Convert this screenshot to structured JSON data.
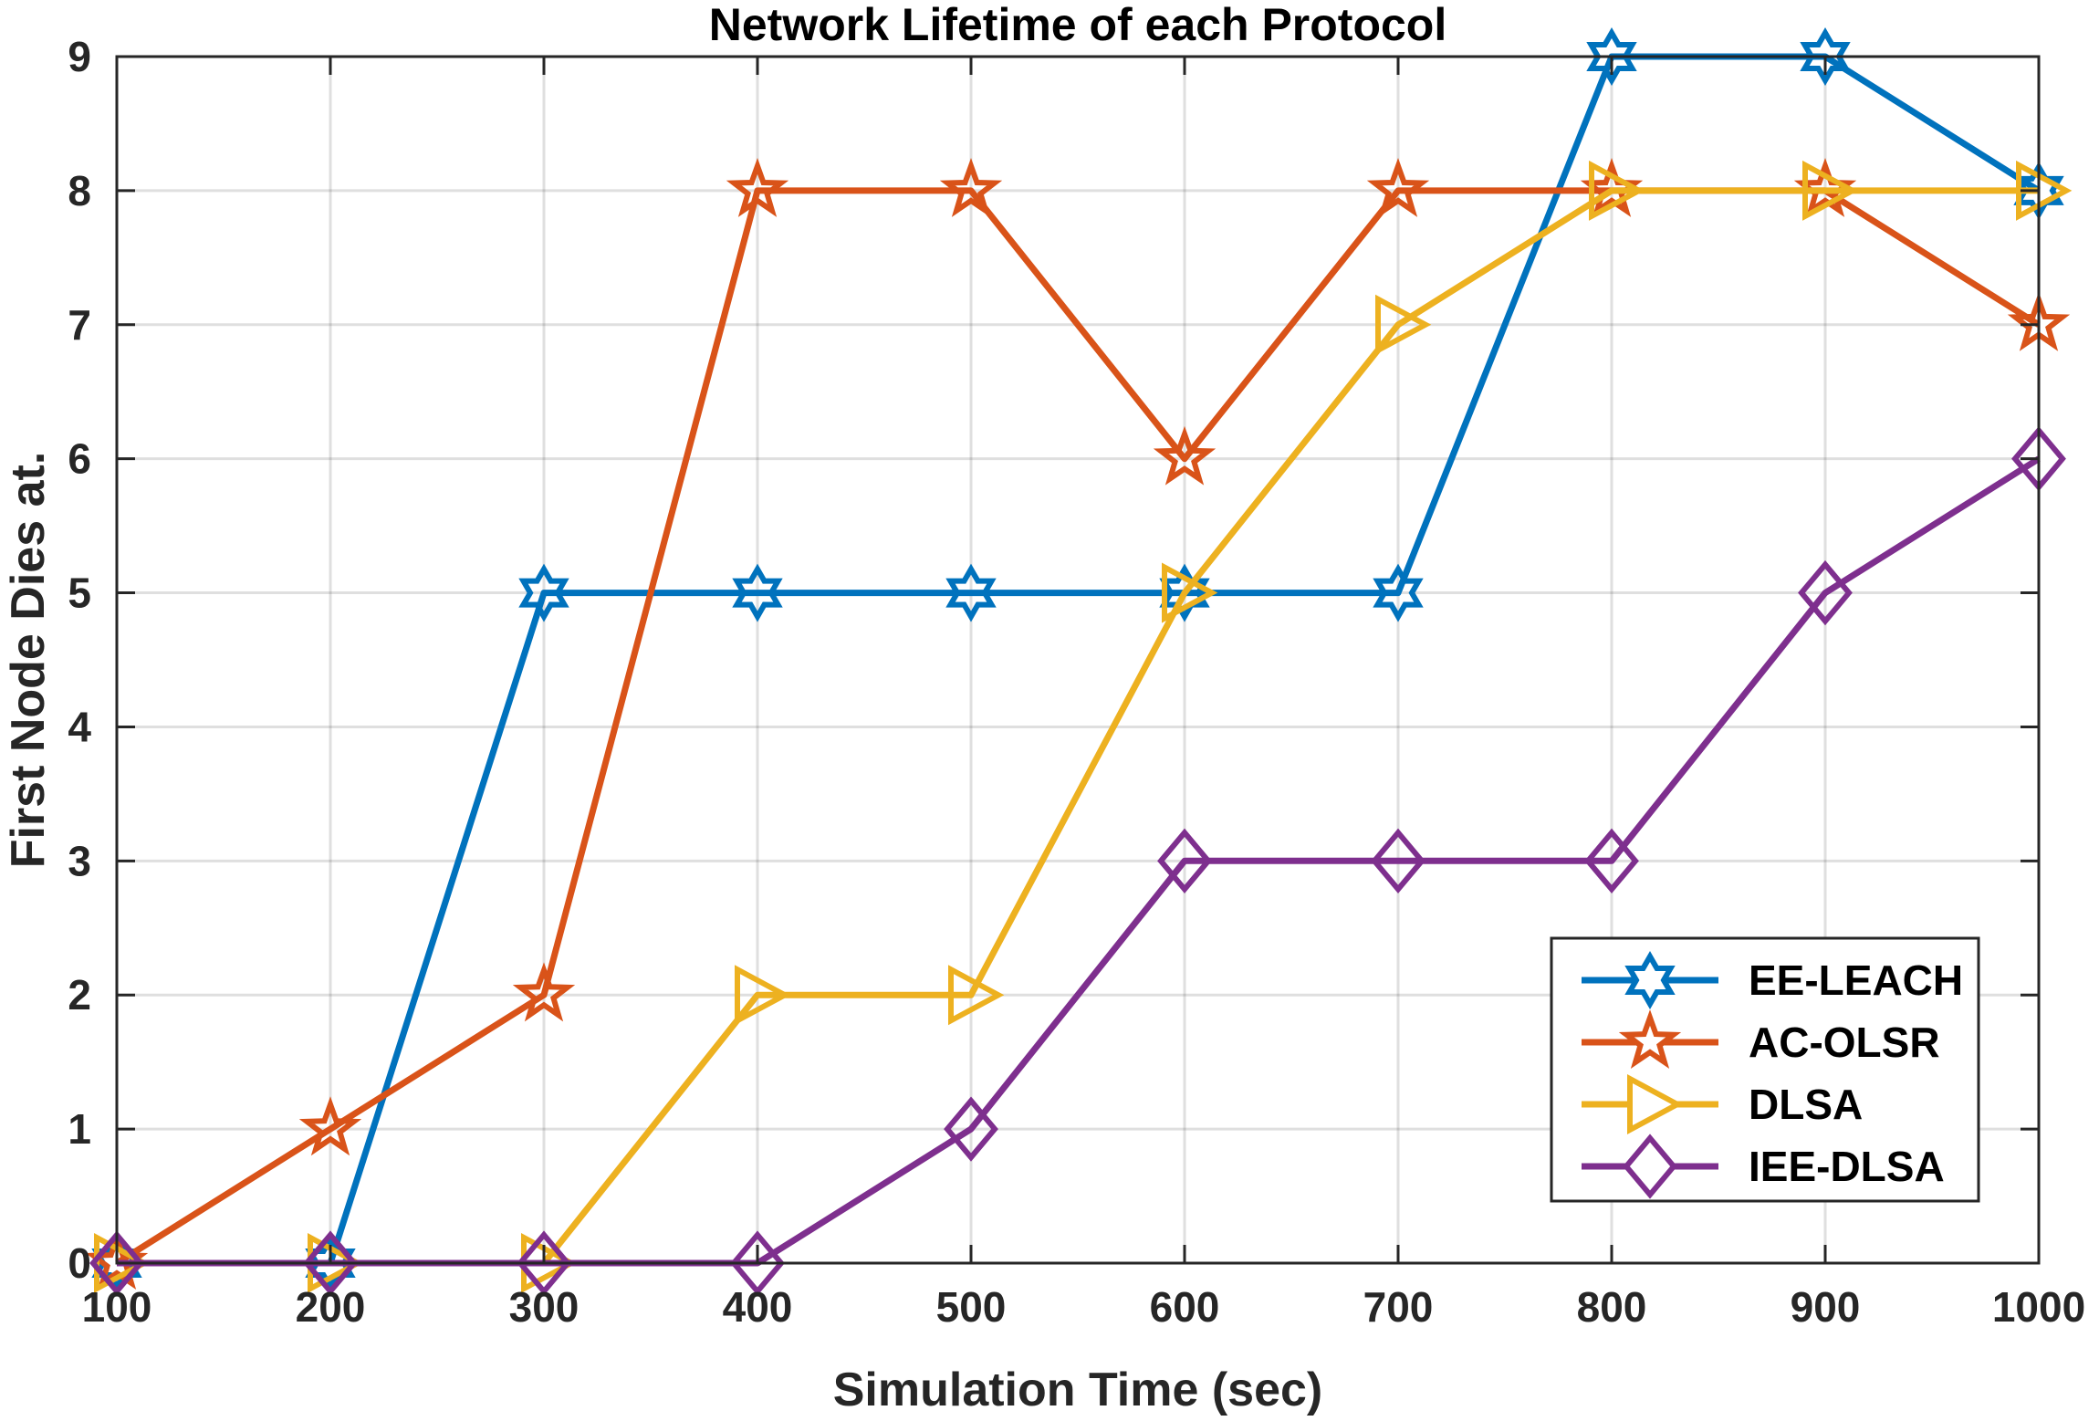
{
  "chart_data": {
    "type": "line",
    "title": "Network Lifetime of each Protocol",
    "xlabel": "Simulation Time (sec)",
    "ylabel": "First Node Dies at.",
    "x": [
      100,
      200,
      300,
      400,
      500,
      600,
      700,
      800,
      900,
      1000
    ],
    "xlim": [
      100,
      1000
    ],
    "ylim": [
      0,
      9
    ],
    "xticks": [
      "100",
      "200",
      "300",
      "400",
      "500",
      "600",
      "700",
      "800",
      "900",
      "1000"
    ],
    "yticks": [
      "0",
      "1",
      "2",
      "3",
      "4",
      "5",
      "6",
      "7",
      "8",
      "9"
    ],
    "grid": true,
    "legend_position": "bottom-right",
    "series": [
      {
        "name": "EE-LEACH",
        "color": "#0072BD",
        "marker": "hexagram",
        "values": [
          0,
          0,
          5,
          5,
          5,
          5,
          5,
          9,
          9,
          8
        ]
      },
      {
        "name": "AC-OLSR",
        "color": "#D95319",
        "marker": "pentagram",
        "values": [
          0,
          1,
          2,
          8,
          8,
          6,
          8,
          8,
          8,
          7
        ]
      },
      {
        "name": "DLSA",
        "color": "#EDB120",
        "marker": "triangle-right",
        "values": [
          0,
          0,
          0,
          2,
          2,
          5,
          7,
          8,
          8,
          8
        ]
      },
      {
        "name": "IEE-DLSA",
        "color": "#7E2F8E",
        "marker": "diamond",
        "values": [
          0,
          0,
          0,
          0,
          1,
          3,
          3,
          3,
          5,
          6
        ]
      }
    ]
  }
}
